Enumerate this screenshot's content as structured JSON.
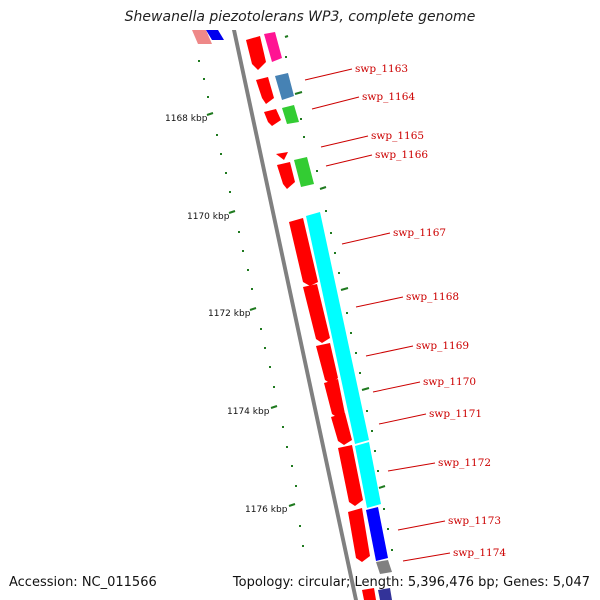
{
  "header": {
    "title": "Shewanella piezotolerans WP3, complete genome"
  },
  "footer": {
    "accession": "Accession: NC_011566",
    "summary": "Topology: circular; Length: 5,396,476 bp; Genes: 5,047"
  },
  "scale_labels": [
    "1168 kbp",
    "1170 kbp",
    "1172 kbp",
    "1174 kbp",
    "1176 kbp"
  ],
  "gene_labels": [
    "swp_1163",
    "swp_1164",
    "swp_1165",
    "swp_1166",
    "swp_1167",
    "swp_1168",
    "swp_1169",
    "swp_1170",
    "swp_1171",
    "swp_1172",
    "swp_1173",
    "swp_1174"
  ],
  "colors": {
    "forward_cds": "#ff0000",
    "blast_hit": "#00ffff",
    "gene_label": "#cc0000",
    "backbone": "#808080",
    "tick": "#006400",
    "magenta": "#ff1493",
    "steelblue": "#4682b4",
    "green": "#33cc33",
    "blue": "#0000ff"
  }
}
